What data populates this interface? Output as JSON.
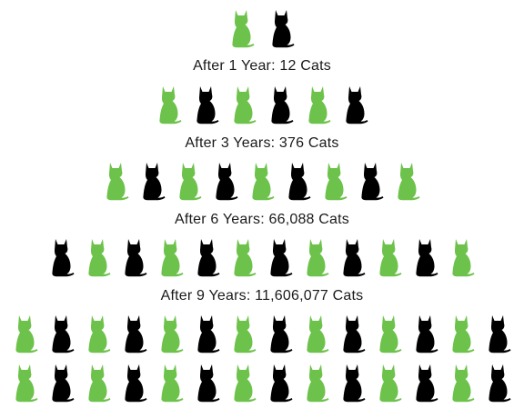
{
  "colors": {
    "green": "#6cc24a",
    "black": "#000000",
    "text": "#1a1a1a"
  },
  "icon": "sitting-cat-icon",
  "rows": [
    {
      "caption": "",
      "cats": [
        "green",
        "black"
      ]
    },
    {
      "caption": "After 1 Year: 12 Cats",
      "cats": [
        "green",
        "black",
        "green",
        "black",
        "green",
        "black"
      ]
    },
    {
      "caption": "After 3 Years: 376 Cats",
      "cats": [
        "green",
        "black",
        "green",
        "black",
        "green",
        "black",
        "green",
        "black",
        "green"
      ]
    },
    {
      "caption": "After 6 Years: 66,088 Cats",
      "cats": [
        "black",
        "green",
        "black",
        "green",
        "black",
        "green",
        "black",
        "green",
        "black",
        "green",
        "black",
        "green"
      ]
    },
    {
      "caption": "After 9 Years: 11,606,077 Cats",
      "cats": [
        "green",
        "black",
        "green",
        "black",
        "green",
        "black",
        "green",
        "black",
        "green",
        "black",
        "green",
        "black",
        "green",
        "black"
      ]
    },
    {
      "caption": "",
      "cats": [
        "green",
        "black",
        "green",
        "black",
        "green",
        "black",
        "green",
        "black",
        "green",
        "black",
        "green",
        "black",
        "green",
        "black"
      ]
    }
  ]
}
